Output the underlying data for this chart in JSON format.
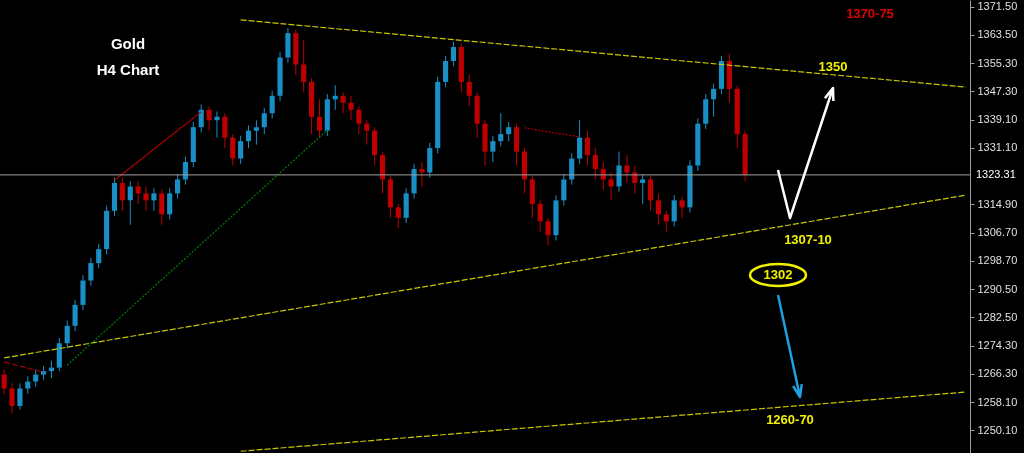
{
  "chart_data": {
    "type": "candlestick",
    "annotations": [
      "Gold",
      "H4 Chart",
      "1370-75",
      "1350",
      "1307-10",
      "1302",
      "1260-70"
    ],
    "categories": [
      null,
      null,
      null,
      null,
      null,
      null,
      null,
      null,
      null,
      null,
      null,
      null,
      null,
      null,
      null,
      null,
      null,
      null,
      null,
      null,
      null,
      null,
      null,
      null,
      null,
      null,
      null,
      null,
      null,
      null,
      null,
      null,
      null,
      null,
      null,
      null,
      null,
      null,
      null,
      null,
      null,
      null,
      null,
      null,
      null,
      null,
      null,
      null,
      null,
      null,
      null,
      null,
      null,
      null,
      null,
      null,
      null,
      null,
      null,
      null,
      null,
      null,
      null,
      null,
      null,
      null,
      null,
      null,
      null,
      null,
      null,
      null,
      null,
      null,
      null,
      null,
      null,
      null,
      null,
      null,
      null,
      null,
      null,
      null,
      null,
      null,
      null,
      null,
      null,
      null,
      null,
      null,
      null,
      null,
      null,
      null,
      null,
      null,
      null,
      null,
      null,
      null,
      null,
      null,
      null,
      null,
      null,
      null,
      null,
      null,
      null,
      null,
      null,
      null,
      null,
      null,
      null,
      null,
      null,
      null,
      null,
      null,
      null
    ],
    "ohlc": [
      [
        1266,
        1267.5,
        1260.5,
        1262
      ],
      [
        1262,
        1263.5,
        1255,
        1257
      ],
      [
        1257,
        1263.5,
        1256,
        1262
      ],
      [
        1262,
        1265.5,
        1260.5,
        1264
      ],
      [
        1264,
        1267.5,
        1262.5,
        1266
      ],
      [
        1266,
        1268.5,
        1264.5,
        1267
      ],
      [
        1267,
        1270,
        1265,
        1268
      ],
      [
        1268,
        1276.5,
        1267,
        1275
      ],
      [
        1275,
        1281.5,
        1273.5,
        1280
      ],
      [
        1280,
        1287.5,
        1278.5,
        1286
      ],
      [
        1286,
        1294.5,
        1284.5,
        1293
      ],
      [
        1293,
        1299.5,
        1291.5,
        1298
      ],
      [
        1298,
        1303.5,
        1296.5,
        1302
      ],
      [
        1302,
        1314.5,
        1300.5,
        1313
      ],
      [
        1313,
        1322.5,
        1311.5,
        1321
      ],
      [
        1321,
        1322.5,
        1313,
        1316
      ],
      [
        1316,
        1321.5,
        1309,
        1320
      ],
      [
        1320,
        1321.5,
        1315,
        1318
      ],
      [
        1318,
        1320,
        1313,
        1316
      ],
      [
        1316,
        1319.5,
        1313,
        1318
      ],
      [
        1318,
        1319,
        1309,
        1312
      ],
      [
        1312,
        1319.5,
        1310.5,
        1318
      ],
      [
        1318,
        1323.5,
        1316.5,
        1322
      ],
      [
        1322,
        1328.5,
        1320.5,
        1327
      ],
      [
        1327,
        1338.5,
        1325.5,
        1337
      ],
      [
        1337,
        1343.5,
        1335.5,
        1342
      ],
      [
        1342,
        1343,
        1336,
        1339
      ],
      [
        1339,
        1341.5,
        1334,
        1340
      ],
      [
        1340,
        1341,
        1331,
        1334
      ],
      [
        1334,
        1335,
        1326,
        1328
      ],
      [
        1328,
        1334.5,
        1326.5,
        1333
      ],
      [
        1333,
        1337.5,
        1331,
        1336
      ],
      [
        1336,
        1339,
        1332,
        1337
      ],
      [
        1337,
        1342.5,
        1335,
        1341
      ],
      [
        1341,
        1347.5,
        1339.5,
        1346
      ],
      [
        1346,
        1358.5,
        1344.5,
        1357
      ],
      [
        1357,
        1365.5,
        1355.5,
        1364
      ],
      [
        1364,
        1365,
        1352,
        1355
      ],
      [
        1355,
        1362,
        1347,
        1350
      ],
      [
        1350,
        1351,
        1335,
        1340
      ],
      [
        1340,
        1345,
        1334,
        1336
      ],
      [
        1336,
        1346.5,
        1334.5,
        1345
      ],
      [
        1345,
        1349,
        1342,
        1346
      ],
      [
        1346,
        1347,
        1341,
        1344
      ],
      [
        1344,
        1346,
        1339,
        1342
      ],
      [
        1342,
        1343,
        1335,
        1338
      ],
      [
        1338,
        1339,
        1332,
        1336
      ],
      [
        1336,
        1337,
        1326,
        1329
      ],
      [
        1329,
        1330,
        1318,
        1322
      ],
      [
        1322,
        1323,
        1311,
        1314
      ],
      [
        1314,
        1315,
        1308,
        1311
      ],
      [
        1311,
        1319.5,
        1309.5,
        1318
      ],
      [
        1318,
        1326.5,
        1316.5,
        1325
      ],
      [
        1325,
        1327,
        1320,
        1324
      ],
      [
        1324,
        1332.5,
        1322.5,
        1331
      ],
      [
        1331,
        1351.5,
        1329.5,
        1350
      ],
      [
        1350,
        1357.5,
        1348.5,
        1356
      ],
      [
        1356,
        1361.5,
        1354.5,
        1360
      ],
      [
        1360,
        1361,
        1347,
        1350
      ],
      [
        1350,
        1352,
        1343,
        1346
      ],
      [
        1346,
        1347,
        1334,
        1338
      ],
      [
        1338,
        1339,
        1326,
        1330
      ],
      [
        1330,
        1334.5,
        1327,
        1333
      ],
      [
        1333,
        1341,
        1331.5,
        1335
      ],
      [
        1335,
        1338.5,
        1333,
        1337
      ],
      [
        1337,
        1338,
        1326,
        1330
      ],
      [
        1330,
        1331,
        1318,
        1322
      ],
      [
        1322,
        1323,
        1311,
        1315
      ],
      [
        1315,
        1316,
        1307,
        1310
      ],
      [
        1310,
        1311,
        1303,
        1306
      ],
      [
        1306,
        1317.5,
        1304.5,
        1316
      ],
      [
        1316,
        1323.5,
        1314.5,
        1322
      ],
      [
        1322,
        1329.5,
        1320.5,
        1328
      ],
      [
        1328,
        1339,
        1326.5,
        1334
      ],
      [
        1334,
        1336,
        1326,
        1329
      ],
      [
        1329,
        1331,
        1322,
        1325
      ],
      [
        1325,
        1327,
        1319,
        1322
      ],
      [
        1322,
        1324,
        1316,
        1320
      ],
      [
        1320,
        1330,
        1318.5,
        1326
      ],
      [
        1326,
        1329,
        1321,
        1324
      ],
      [
        1324,
        1326,
        1318,
        1321
      ],
      [
        1321,
        1323.5,
        1315,
        1322
      ],
      [
        1322,
        1323,
        1313,
        1316
      ],
      [
        1316,
        1318,
        1309,
        1312
      ],
      [
        1312,
        1313,
        1307,
        1310
      ],
      [
        1310,
        1317.5,
        1308.5,
        1316
      ],
      [
        1316,
        1317,
        1311,
        1314
      ],
      [
        1314,
        1327.5,
        1312.5,
        1326
      ],
      [
        1326,
        1339.5,
        1324.5,
        1338
      ],
      [
        1338,
        1346.5,
        1336.5,
        1345
      ],
      [
        1345,
        1349.5,
        1340,
        1348
      ],
      [
        1348,
        1357.5,
        1346.5,
        1356
      ],
      [
        1356,
        1358,
        1344,
        1348
      ],
      [
        1348,
        1349,
        1331,
        1335
      ],
      [
        1335,
        1336,
        1321.5,
        1323.3
      ],
      null,
      null,
      null,
      null,
      null,
      null,
      null,
      null,
      null,
      null,
      null,
      null,
      null,
      null,
      null,
      null,
      null,
      null,
      null,
      null,
      null,
      null,
      null,
      null,
      null,
      null,
      null,
      null
    ],
    "colors": [
      "#c00000",
      "#c00000",
      "#1a8fc6",
      "#1a8fc6",
      "#1a8fc6",
      "#1a8fc6",
      "#1a8fc6",
      "#1a8fc6",
      "#1a8fc6",
      "#1a8fc6",
      "#1a8fc6",
      "#1a8fc6",
      "#1a8fc6",
      "#1a8fc6",
      "#1a8fc6",
      "#c00000",
      "#1a8fc6",
      "#c00000",
      "#c00000",
      "#1a8fc6",
      "#c00000",
      "#1a8fc6",
      "#1a8fc6",
      "#1a8fc6",
      "#1a8fc6",
      "#1a8fc6",
      "#c00000",
      "#1a8fc6",
      "#c00000",
      "#c00000",
      "#1a8fc6",
      "#1a8fc6",
      "#1a8fc6",
      "#1a8fc6",
      "#1a8fc6",
      "#1a8fc6",
      "#1a8fc6",
      "#c00000",
      "#c00000",
      "#c00000",
      "#c00000",
      "#1a8fc6",
      "#1a8fc6",
      "#c00000",
      "#c00000",
      "#c00000",
      "#c00000",
      "#c00000",
      "#c00000",
      "#c00000",
      "#c00000",
      "#1a8fc6",
      "#1a8fc6",
      "#c00000",
      "#1a8fc6",
      "#1a8fc6",
      "#1a8fc6",
      "#1a8fc6",
      "#c00000",
      "#c00000",
      "#c00000",
      "#c00000",
      "#1a8fc6",
      "#1a8fc6",
      "#1a8fc6",
      "#c00000",
      "#c00000",
      "#c00000",
      "#c00000",
      "#c00000",
      "#1a8fc6",
      "#1a8fc6",
      "#1a8fc6",
      "#1a8fc6",
      "#c00000",
      "#c00000",
      "#c00000",
      "#c00000",
      "#1a8fc6",
      "#c00000",
      "#c00000",
      "#1a8fc6",
      "#c00000",
      "#c00000",
      "#c00000",
      "#1a8fc6",
      "#c00000",
      "#1a8fc6",
      "#1a8fc6",
      "#1a8fc6",
      "#1a8fc6",
      "#1a8fc6",
      "#c00000",
      "#c00000",
      "#c00000",
      null,
      null,
      null,
      null,
      null,
      null,
      null,
      null,
      null,
      null,
      null,
      null,
      null,
      null,
      null,
      null,
      null,
      null,
      null,
      null,
      null,
      null,
      null,
      null,
      null,
      null,
      null,
      null
    ],
    "series": [
      {
        "type": "line",
        "color": "#c8c800",
        "line_style": "dashed",
        "values": [
          null,
          null,
          null,
          null,
          null,
          null,
          null,
          null,
          null,
          null,
          null,
          null,
          null,
          null,
          null,
          null,
          null,
          null,
          null,
          null,
          null,
          null,
          null,
          null,
          null,
          null,
          null,
          null,
          null,
          null,
          1367.8,
          null,
          null,
          null,
          null,
          null,
          null,
          null,
          null,
          null,
          null,
          null,
          null,
          null,
          null,
          null,
          null,
          null,
          null,
          null,
          null,
          null,
          null,
          null,
          null,
          null,
          null,
          null,
          null,
          null,
          null,
          null,
          null,
          null,
          null,
          null,
          null,
          null,
          null,
          null,
          null,
          null,
          null,
          null,
          null,
          null,
          null,
          null,
          null,
          null,
          null,
          null,
          null,
          null,
          null,
          null,
          null,
          null,
          null,
          null,
          null,
          null,
          null,
          null,
          null,
          null,
          null,
          null,
          null,
          null,
          null,
          null,
          null,
          null,
          null,
          null,
          null,
          null,
          null,
          null,
          null,
          null,
          null,
          null,
          null,
          null,
          null,
          null,
          null,
          null,
          null,
          null,
          1348.5
        ]
      },
      {
        "type": "line",
        "color": "#c8c800",
        "line_style": "dashed",
        "values": [
          1270.8,
          null,
          null,
          null,
          null,
          null,
          null,
          null,
          null,
          null,
          null,
          null,
          null,
          null,
          null,
          null,
          null,
          null,
          null,
          null,
          null,
          null,
          null,
          null,
          null,
          null,
          null,
          null,
          null,
          null,
          null,
          null,
          null,
          null,
          null,
          null,
          null,
          null,
          null,
          null,
          null,
          null,
          null,
          null,
          null,
          null,
          null,
          null,
          null,
          null,
          null,
          null,
          null,
          null,
          null,
          null,
          null,
          null,
          null,
          null,
          null,
          null,
          null,
          null,
          null,
          null,
          null,
          null,
          null,
          null,
          null,
          null,
          null,
          null,
          null,
          null,
          null,
          null,
          null,
          null,
          null,
          null,
          null,
          null,
          null,
          null,
          null,
          null,
          null,
          null,
          null,
          null,
          null,
          null,
          null,
          null,
          null,
          null,
          null,
          null,
          null,
          null,
          null,
          null,
          null,
          null,
          null,
          null,
          null,
          null,
          null,
          null,
          null,
          null,
          null,
          null,
          null,
          null,
          null,
          null,
          null,
          null,
          1317.5
        ]
      },
      {
        "type": "line",
        "color": "#c8c800",
        "line_style": "dashed",
        "values": [
          null,
          null,
          null,
          null,
          null,
          null,
          null,
          null,
          null,
          null,
          null,
          null,
          null,
          null,
          null,
          null,
          null,
          null,
          null,
          null,
          null,
          null,
          null,
          null,
          null,
          null,
          null,
          null,
          null,
          null,
          1244,
          null,
          null,
          null,
          null,
          null,
          null,
          null,
          null,
          null,
          null,
          null,
          null,
          null,
          null,
          null,
          null,
          null,
          null,
          null,
          null,
          null,
          null,
          null,
          null,
          null,
          null,
          null,
          null,
          null,
          null,
          null,
          null,
          null,
          null,
          null,
          null,
          null,
          null,
          null,
          null,
          null,
          null,
          null,
          null,
          null,
          null,
          null,
          null,
          null,
          null,
          null,
          null,
          null,
          null,
          null,
          null,
          null,
          null,
          null,
          null,
          null,
          null,
          null,
          null,
          null,
          null,
          null,
          null,
          null,
          null,
          null,
          null,
          null,
          null,
          null,
          null,
          null,
          null,
          null,
          null,
          null,
          null,
          null,
          null,
          null,
          null,
          null,
          null,
          null,
          null,
          null,
          1261
        ]
      },
      {
        "type": "line",
        "color": "#b00000",
        "line_style": "solid",
        "values": [
          null,
          null,
          null,
          null,
          null,
          null,
          null,
          null,
          null,
          null,
          null,
          null,
          null,
          null,
          1321.8,
          null,
          null,
          null,
          null,
          null,
          null,
          null,
          null,
          null,
          null,
          1341.4,
          null,
          null,
          null,
          null,
          null,
          null,
          null,
          null,
          null,
          null,
          null,
          null,
          null,
          null,
          null,
          null,
          null,
          null,
          null,
          null,
          null,
          null,
          null,
          null,
          null,
          null,
          null,
          null,
          null,
          null,
          null,
          null,
          null,
          null,
          null,
          null,
          null,
          null,
          null,
          null,
          null,
          null,
          null,
          null,
          null,
          null,
          null,
          null,
          null,
          null,
          null,
          null,
          null,
          null,
          null,
          null,
          null,
          null,
          null,
          null,
          null,
          null,
          null,
          null,
          null,
          null,
          null,
          null,
          null,
          null,
          null,
          null,
          null,
          null,
          null,
          null,
          null,
          null,
          null,
          null,
          null,
          null,
          null,
          null,
          null,
          null,
          null,
          null,
          null,
          null,
          null,
          null,
          null,
          null,
          null,
          null,
          null
        ]
      },
      {
        "type": "line",
        "color": "#008000",
        "line_style": "dotted",
        "values": [
          null,
          null,
          null,
          null,
          null,
          null,
          null,
          null,
          1268.7,
          null,
          null,
          null,
          null,
          null,
          null,
          null,
          null,
          null,
          null,
          null,
          null,
          null,
          null,
          null,
          null,
          null,
          null,
          null,
          null,
          null,
          null,
          null,
          null,
          null,
          null,
          null,
          null,
          null,
          null,
          null,
          null,
          1336.2,
          null,
          null,
          null,
          null,
          null,
          null,
          null,
          null,
          null,
          null,
          null,
          null,
          null,
          null,
          null,
          null,
          null,
          null,
          null,
          null,
          null,
          null,
          null,
          null,
          null,
          null,
          null,
          null,
          null,
          null,
          null,
          null,
          null,
          null,
          null,
          null,
          null,
          null,
          null,
          null,
          null,
          null,
          null,
          null,
          null,
          null,
          null,
          null,
          null,
          null,
          null,
          null,
          null,
          null,
          null,
          null,
          null,
          null,
          null,
          null,
          null,
          null,
          null,
          null,
          null,
          null,
          null,
          null,
          null,
          null,
          null,
          null,
          null,
          null,
          null,
          null,
          null,
          null,
          null,
          null,
          null
        ]
      },
      {
        "type": "line",
        "color": "#b00000",
        "line_style": "dotted",
        "values": [
          null,
          null,
          null,
          null,
          null,
          null,
          null,
          null,
          null,
          null,
          null,
          null,
          null,
          null,
          null,
          null,
          null,
          null,
          null,
          null,
          null,
          null,
          null,
          null,
          null,
          null,
          null,
          null,
          null,
          null,
          null,
          null,
          null,
          null,
          null,
          null,
          null,
          null,
          null,
          null,
          null,
          null,
          null,
          null,
          null,
          null,
          null,
          null,
          null,
          null,
          null,
          null,
          null,
          null,
          null,
          null,
          null,
          null,
          null,
          null,
          null,
          null,
          null,
          null,
          null,
          null,
          1336.8,
          null,
          null,
          null,
          null,
          null,
          null,
          1334.2,
          null,
          null,
          null,
          null,
          null,
          null,
          null,
          null,
          null,
          null,
          null,
          null,
          null,
          null,
          null,
          null,
          null,
          null,
          null,
          null,
          null,
          null,
          null,
          null,
          null,
          null,
          null,
          null,
          null,
          null,
          null,
          null,
          null,
          null,
          null,
          null,
          null,
          null,
          null,
          null,
          null,
          null,
          null,
          null,
          null,
          null,
          null,
          null,
          null
        ]
      },
      {
        "type": "line",
        "color": "#b00000",
        "line_style": "dashed",
        "values": [
          1269.6,
          null,
          null,
          null,
          null,
          1266.7,
          null,
          null,
          null,
          null,
          null,
          null,
          null,
          null,
          null,
          null,
          null,
          null,
          null,
          null,
          null,
          null,
          null,
          null,
          null,
          null,
          null,
          null,
          null,
          null,
          null,
          null,
          null,
          null,
          null,
          null,
          null,
          null,
          null,
          null,
          null,
          null,
          null,
          null,
          null,
          null,
          null,
          null,
          null,
          null,
          null,
          null,
          null,
          null,
          null,
          null,
          null,
          null,
          null,
          null,
          null,
          null,
          null,
          null,
          null,
          null,
          null,
          null,
          null,
          null,
          null,
          null,
          null,
          null,
          null,
          null,
          null,
          null,
          null,
          null,
          null,
          null,
          null,
          null,
          null,
          null,
          null,
          null,
          null,
          null,
          null,
          null,
          null,
          null,
          null,
          null,
          null,
          null,
          null,
          null,
          null,
          null,
          null,
          null,
          null,
          null,
          null,
          null,
          null,
          null,
          null,
          null,
          null,
          null,
          null,
          null,
          null,
          null,
          null,
          null,
          null,
          null,
          null
        ]
      }
    ],
    "ref_lines": [
      {
        "axis": "y",
        "value": 1323.31,
        "label": "1323.31",
        "color": "#a0a0a0"
      }
    ],
    "ylim": [
      1243.5,
      1373.5
    ],
    "yticks": [
      {
        "value": 1250.1,
        "label": "1250.10"
      },
      {
        "value": 1258.1,
        "label": "1258.10"
      },
      {
        "value": 1266.3,
        "label": "1266.30"
      },
      {
        "value": 1274.3,
        "label": "1274.30"
      },
      {
        "value": 1282.5,
        "label": "1282.50"
      },
      {
        "value": 1290.5,
        "label": "1290.50"
      },
      {
        "value": 1298.7,
        "label": "1298.70"
      },
      {
        "value": 1306.7,
        "label": "1306.70"
      },
      {
        "value": 1314.9,
        "label": "1314.90"
      },
      {
        "value": 1331.1,
        "label": "1331.10"
      },
      {
        "value": 1339.1,
        "label": "1339.10"
      },
      {
        "value": 1347.3,
        "label": "1347.30"
      },
      {
        "value": 1355.3,
        "label": "1355.30"
      },
      {
        "value": 1363.5,
        "label": "1363.50"
      },
      {
        "value": 1371.5,
        "label": "1371.50"
      }
    ],
    "tick_labels": "y"
  }
}
